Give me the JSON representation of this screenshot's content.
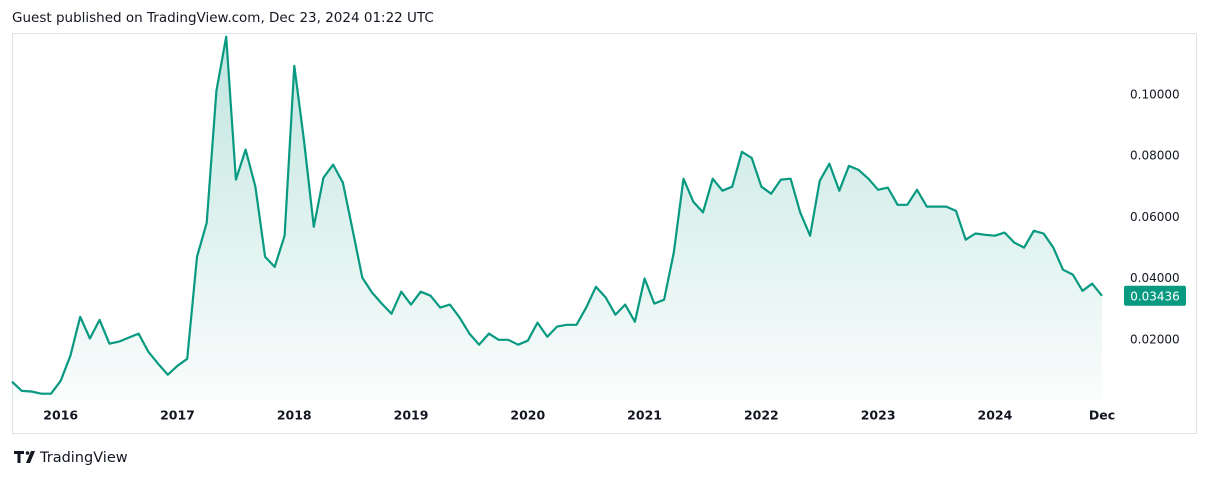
{
  "header": {
    "text": "Guest published on TradingView.com, Dec 23, 2024 01:22 UTC"
  },
  "footer": {
    "brand": "TradingView"
  },
  "chart_data": {
    "type": "area",
    "color": "#089981",
    "grid": false,
    "x": [
      2015.583,
      2015.667,
      2015.75,
      2015.833,
      2015.917,
      2016,
      2016.083,
      2016.167,
      2016.25,
      2016.333,
      2016.417,
      2016.5,
      2016.583,
      2016.667,
      2016.75,
      2016.833,
      2016.917,
      2017,
      2017.083,
      2017.167,
      2017.25,
      2017.333,
      2017.417,
      2017.5,
      2017.583,
      2017.667,
      2017.75,
      2017.833,
      2017.917,
      2018,
      2018.083,
      2018.167,
      2018.25,
      2018.333,
      2018.417,
      2018.5,
      2018.583,
      2018.667,
      2018.75,
      2018.833,
      2018.917,
      2019,
      2019.083,
      2019.167,
      2019.25,
      2019.333,
      2019.417,
      2019.5,
      2019.583,
      2019.667,
      2019.75,
      2019.833,
      2019.917,
      2020,
      2020.083,
      2020.167,
      2020.25,
      2020.333,
      2020.417,
      2020.5,
      2020.583,
      2020.667,
      2020.75,
      2020.833,
      2020.917,
      2021,
      2021.083,
      2021.167,
      2021.25,
      2021.333,
      2021.417,
      2021.5,
      2021.583,
      2021.667,
      2021.75,
      2021.833,
      2021.917,
      2022,
      2022.083,
      2022.167,
      2022.25,
      2022.333,
      2022.417,
      2022.5,
      2022.583,
      2022.667,
      2022.75,
      2022.833,
      2022.917,
      2023,
      2023.083,
      2023.167,
      2023.25,
      2023.333,
      2023.417,
      2023.5,
      2023.583,
      2023.667,
      2023.75,
      2023.833,
      2023.917,
      2024,
      2024.083,
      2024.167,
      2024.25,
      2024.333,
      2024.417,
      2024.5,
      2024.583,
      2024.667,
      2024.75,
      2024.833,
      2024.917
    ],
    "values": [
      0.0063,
      0.0033,
      0.0031,
      0.0024,
      0.0024,
      0.0066,
      0.0148,
      0.0275,
      0.0204,
      0.0265,
      0.0187,
      0.0194,
      0.0207,
      0.022,
      0.0161,
      0.0122,
      0.0086,
      0.0115,
      0.0138,
      0.0471,
      0.0582,
      0.1013,
      0.119,
      0.0723,
      0.0821,
      0.07,
      0.0471,
      0.0438,
      0.054,
      0.1095,
      0.0853,
      0.0569,
      0.0729,
      0.0772,
      0.0713,
      0.0559,
      0.0403,
      0.0354,
      0.0318,
      0.0285,
      0.0357,
      0.0315,
      0.0357,
      0.0344,
      0.0305,
      0.0315,
      0.0272,
      0.022,
      0.0184,
      0.022,
      0.02,
      0.02,
      0.0184,
      0.0197,
      0.0256,
      0.021,
      0.0243,
      0.0249,
      0.0249,
      0.0305,
      0.0373,
      0.0338,
      0.0282,
      0.0315,
      0.0259,
      0.04,
      0.0318,
      0.0331,
      0.0485,
      0.0726,
      0.0651,
      0.0616,
      0.0726,
      0.0687,
      0.07,
      0.0814,
      0.0794,
      0.07,
      0.0677,
      0.0723,
      0.0726,
      0.0616,
      0.054,
      0.0719,
      0.0775,
      0.0687,
      0.0768,
      0.0755,
      0.0726,
      0.069,
      0.0697,
      0.0641,
      0.0641,
      0.069,
      0.0635,
      0.0635,
      0.0635,
      0.0621,
      0.0527,
      0.0547,
      0.0543,
      0.054,
      0.055,
      0.0517,
      0.0501,
      0.0556,
      0.0547,
      0.0501,
      0.0429,
      0.0413,
      0.036,
      0.0383,
      0.03436
    ],
    "xlim": [
      2015.583,
      2024.917
    ],
    "xticks": [
      2016,
      2017,
      2018,
      2019,
      2020,
      2021,
      2022,
      2023,
      2024,
      {
        "value": 2024.917,
        "label": "Dec"
      }
    ],
    "ylim": [
      0,
      0.1202
    ],
    "yticks": [
      {
        "value": 0.02,
        "label": "0.02000"
      },
      {
        "value": 0.04,
        "label": "0.04000"
      },
      {
        "value": 0.06,
        "label": "0.06000"
      },
      {
        "value": 0.08,
        "label": "0.08000"
      },
      {
        "value": 0.1,
        "label": "0.10000"
      }
    ]
  }
}
